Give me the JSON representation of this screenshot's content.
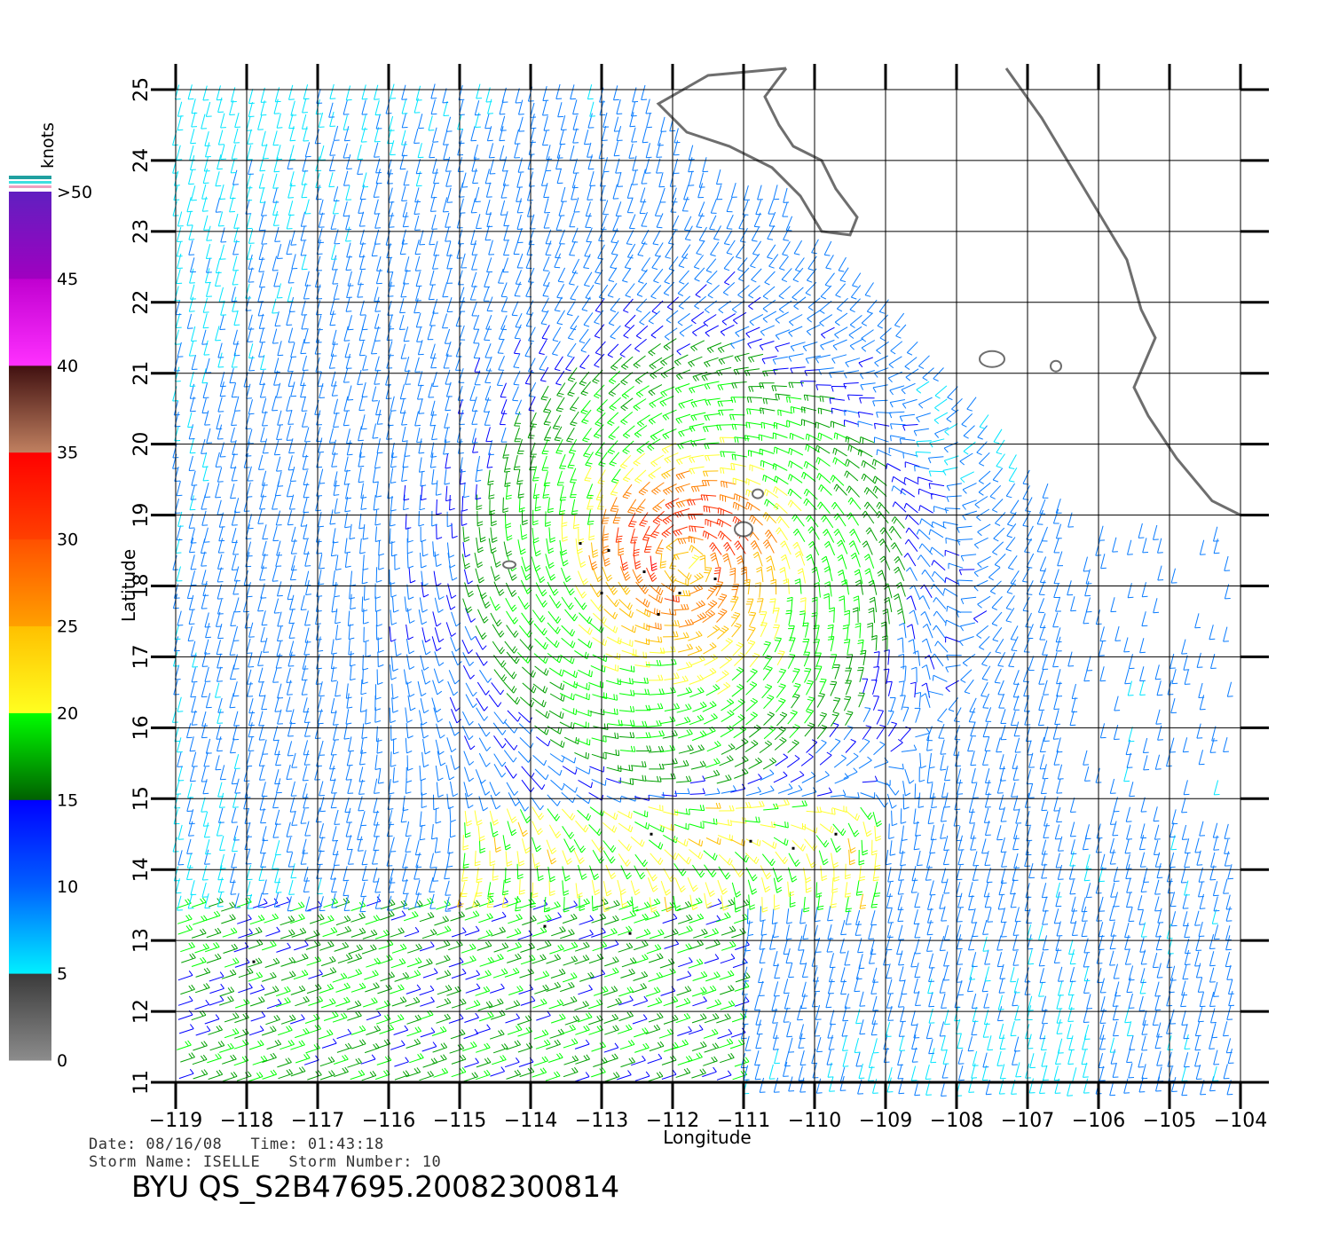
{
  "map": {
    "lon_min": -119,
    "lon_max": -104,
    "lat_min": 11,
    "lat_max": 25,
    "x_ticks": [
      "−119",
      "−118",
      "−117",
      "−116",
      "−115",
      "−114",
      "−113",
      "−112",
      "−111",
      "−110",
      "−109",
      "−108",
      "−107",
      "−106",
      "−105",
      "−104"
    ],
    "y_ticks": [
      "11",
      "12",
      "13",
      "14",
      "15",
      "16",
      "17",
      "18",
      "19",
      "20",
      "21",
      "22",
      "23",
      "24",
      "25"
    ],
    "xlabel": "Longitude",
    "ylabel": "Latitude",
    "storm_center": {
      "lon": -111.8,
      "lat": 18.3
    },
    "rain_flags": [
      {
        "lon": -113.3,
        "lat": 18.6
      },
      {
        "lon": -112.9,
        "lat": 18.5
      },
      {
        "lon": -112.4,
        "lat": 18.2
      },
      {
        "lon": -111.9,
        "lat": 17.9
      },
      {
        "lon": -111.4,
        "lat": 18.1
      },
      {
        "lon": -113.0,
        "lat": 17.9
      },
      {
        "lon": -112.2,
        "lat": 17.6
      },
      {
        "lon": -110.9,
        "lat": 14.4
      },
      {
        "lon": -110.3,
        "lat": 14.3
      },
      {
        "lon": -109.7,
        "lat": 14.5
      },
      {
        "lon": -112.3,
        "lat": 14.5
      },
      {
        "lon": -113.8,
        "lat": 13.2
      },
      {
        "lon": -117.9,
        "lat": 12.7
      },
      {
        "lon": -112.6,
        "lat": 13.1
      }
    ]
  },
  "colorbar": {
    "title": "knots",
    "labels": [
      "0",
      "5",
      "10",
      "15",
      "20",
      "25",
      "30",
      "35",
      "40",
      "45",
      ">50"
    ],
    "colors": [
      "#7a7a7a",
      "#2e2e2e",
      "#00e5ff",
      "#0a7cff",
      "#0000ff",
      "#00a000",
      "#00ff00",
      "#ffff30",
      "#ffc000",
      "#ff8000",
      "#ff3000",
      "#ff0000",
      "#b07050",
      "#401010",
      "#ff20ff",
      "#a000c0",
      "#6020c0"
    ]
  },
  "land_colors": {
    "coast": "#6e6e6e"
  },
  "metadata": {
    "date_line": "Date: 08/16/08   Time: 01:43:18",
    "storm_line": "Storm Name: ISELLE   Storm Number: 10",
    "product": "BYU QS_S2B47695.20082300814"
  }
}
